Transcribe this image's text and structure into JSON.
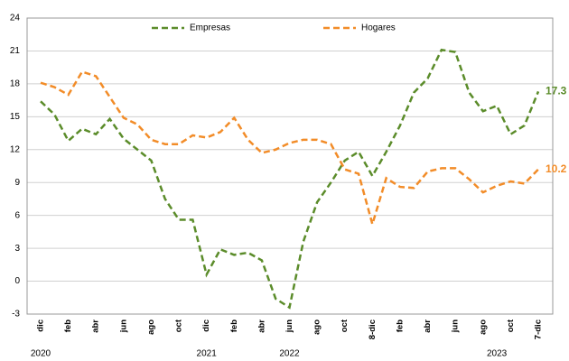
{
  "chart_data": {
    "type": "line",
    "categories": [
      "dic",
      null,
      "feb",
      null,
      "abr",
      null,
      "jun",
      null,
      "ago",
      null,
      "oct",
      null,
      "dic",
      null,
      "feb",
      null,
      "abr",
      null,
      "jun",
      null,
      "ago",
      null,
      "oct",
      null,
      "8-dic",
      null,
      "feb",
      null,
      "abr",
      null,
      "jun",
      null,
      "ago",
      null,
      "oct",
      null,
      "7-dic"
    ],
    "years": [
      "2020",
      "2021",
      "2022",
      "2023"
    ],
    "series": [
      {
        "name": "Empresas",
        "color": "#5b8c2a",
        "values": [
          16.4,
          15.2,
          12.8,
          13.9,
          13.4,
          14.8,
          13.0,
          12.0,
          11.0,
          7.5,
          5.6,
          5.6,
          0.6,
          2.9,
          2.4,
          2.6,
          1.9,
          -1.6,
          -2.4,
          3.6,
          7.2,
          9.0,
          11.0,
          11.8,
          9.6,
          11.8,
          14.2,
          17.2,
          18.5,
          21.1,
          20.9,
          17.2,
          15.5,
          16.0,
          13.4,
          14.2,
          17.3
        ]
      },
      {
        "name": "Hogares",
        "color": "#f28c28",
        "values": [
          18.1,
          17.7,
          17.0,
          19.1,
          18.7,
          16.8,
          14.9,
          14.3,
          12.9,
          12.5,
          12.5,
          13.3,
          13.1,
          13.6,
          14.9,
          12.9,
          11.7,
          12.0,
          12.6,
          12.9,
          12.9,
          12.5,
          10.2,
          9.8,
          5.2,
          9.4,
          8.6,
          8.5,
          10.0,
          10.3,
          10.3,
          9.3,
          8.1,
          8.7,
          9.1,
          8.9,
          10.2
        ]
      }
    ],
    "ylim": [
      -3,
      24
    ],
    "yticks": [
      -3,
      0,
      3,
      6,
      9,
      12,
      15,
      18,
      21,
      24
    ],
    "grid": true,
    "legend": "top"
  }
}
